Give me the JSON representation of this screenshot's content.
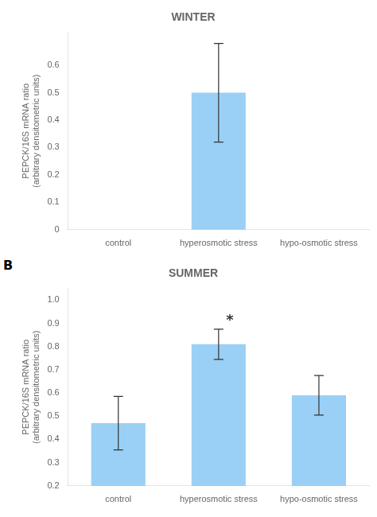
{
  "chart_data": [
    {
      "type": "bar",
      "title": "WINTER",
      "categories": [
        "control",
        "hyperosmotic stress",
        "hypo-osmotic stress"
      ],
      "values": [
        0.0,
        0.5,
        0.0
      ],
      "errors": [
        0.0,
        0.18,
        0.0
      ],
      "ylabel": "PEPCK/16S mRNA ratio\n(arbitrary densitometric units)",
      "ylim": [
        0,
        0.72
      ],
      "yticks": [
        0,
        0.1,
        0.2,
        0.3,
        0.4,
        0.5,
        0.6
      ],
      "grid": false
    },
    {
      "type": "bar",
      "title": "SUMMER",
      "panel_label": "B",
      "categories": [
        "control",
        "hyperosmotic stress",
        "hypo-osmotic stress"
      ],
      "values": [
        0.47,
        0.81,
        0.59
      ],
      "errors": [
        0.115,
        0.065,
        0.085
      ],
      "ylabel": "PEPCK/16S mRNA ratio\n(arbitrary densitometric units)",
      "ylim": [
        0.2,
        1.05
      ],
      "yticks": [
        0.2,
        0.3,
        0.4,
        0.5,
        0.6,
        0.7,
        0.8,
        0.9,
        {
          "value": 1.0,
          "label": "1.0"
        }
      ],
      "annotations": [
        {
          "text": "*",
          "category": "hyperosmotic stress"
        }
      ],
      "grid": false
    }
  ]
}
